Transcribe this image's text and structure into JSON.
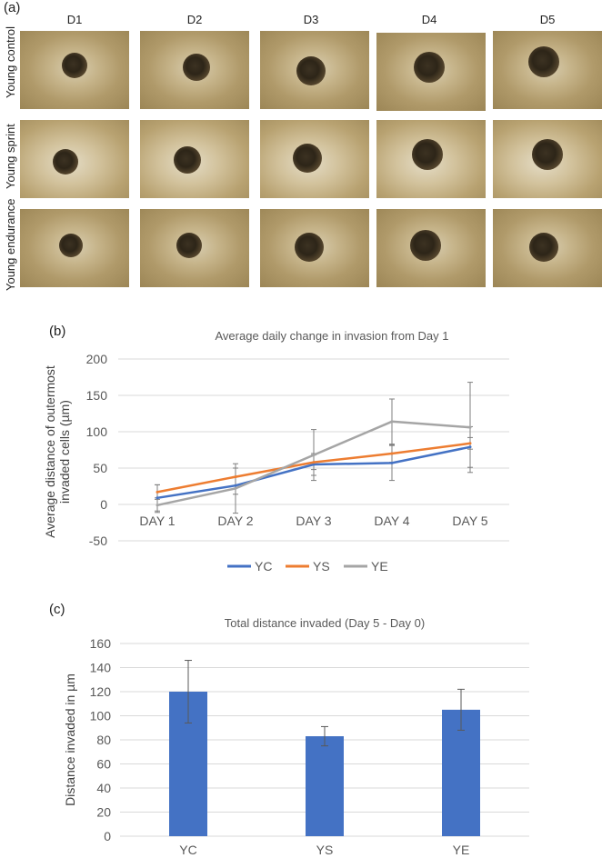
{
  "panel_labels": {
    "a": "(a)",
    "b": "(b)",
    "c": "(c)"
  },
  "image_grid": {
    "columns": [
      "D1",
      "D2",
      "D3",
      "D4",
      "D5"
    ],
    "rows": [
      "Young control",
      "Young sprint",
      "Young endurance"
    ]
  },
  "colors": {
    "YC": "#4472c4",
    "YS": "#ed7d31",
    "YE": "#a5a5a5",
    "bar": "#4472c4",
    "grid": "#d9d9d9",
    "text": "#595959"
  },
  "chart_data": [
    {
      "type": "line",
      "title": "Average daily change in invasion from Day 1",
      "xlabel": "",
      "ylabel": "Average distance of outermost invaded cells (µm)",
      "categories": [
        "DAY 1",
        "DAY 2",
        "DAY 3",
        "DAY 4",
        "DAY 5"
      ],
      "ylim": [
        -50,
        200
      ],
      "yticks": [
        -50,
        0,
        50,
        100,
        150,
        200
      ],
      "grid": true,
      "legend": "bottom",
      "series": [
        {
          "name": "YC",
          "values": [
            9,
            26,
            55,
            57,
            79
          ],
          "error": [
            18,
            12,
            15,
            24,
            28
          ]
        },
        {
          "name": "YS",
          "values": [
            17,
            38,
            58,
            70,
            84
          ],
          "error": [
            10,
            12,
            10,
            12,
            8
          ]
        },
        {
          "name": "YE",
          "values": [
            -1,
            22,
            68,
            114,
            106
          ],
          "error": [
            10,
            34,
            35,
            31,
            62
          ]
        }
      ]
    },
    {
      "type": "bar",
      "title": "Total distance invaded (Day 5 - Day 0)",
      "xlabel": "",
      "ylabel": "Distance invaded in µm",
      "categories": [
        "YC",
        "YS",
        "YE"
      ],
      "values": [
        120,
        83,
        105
      ],
      "error": [
        26,
        8,
        17
      ],
      "ylim": [
        0,
        160
      ],
      "yticks": [
        0,
        20,
        40,
        60,
        80,
        100,
        120,
        140,
        160
      ],
      "grid": true
    }
  ]
}
